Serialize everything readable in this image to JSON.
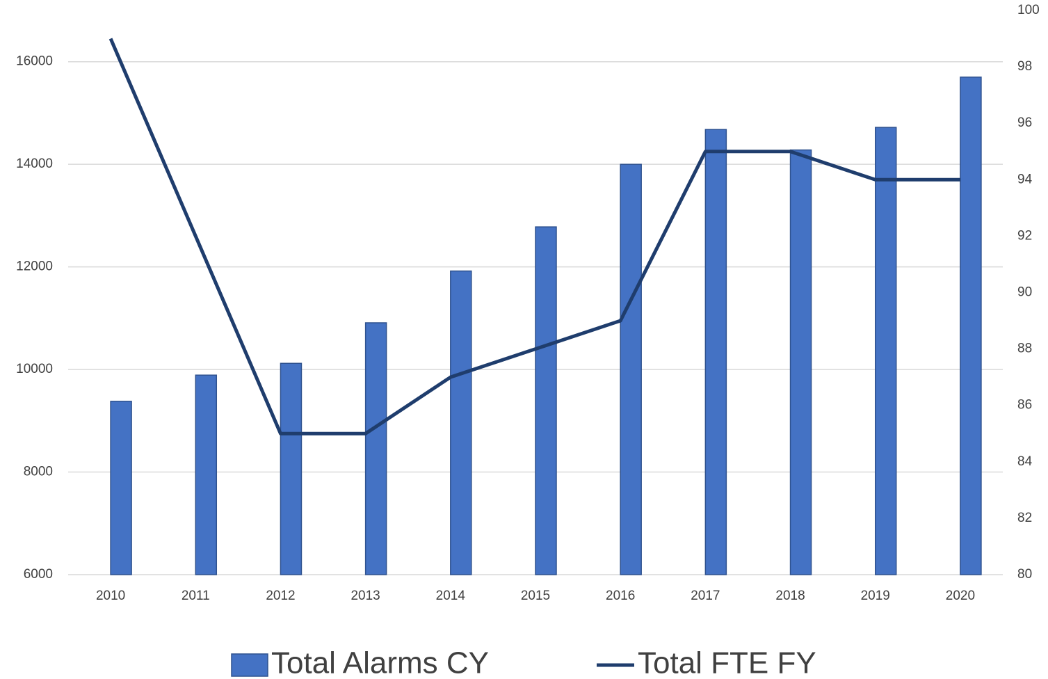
{
  "chart_data": {
    "type": "bar_line",
    "categories": [
      "2010",
      "2011",
      "2012",
      "2013",
      "2014",
      "2015",
      "2016",
      "2017",
      "2018",
      "2019",
      "2020"
    ],
    "series": [
      {
        "name": "Total Alarms CY",
        "type": "bar",
        "color": "#4472c4",
        "axis": "y",
        "values": [
          9380,
          9890,
          10120,
          10910,
          11920,
          12780,
          14000,
          14680,
          14280,
          14720,
          15700
        ]
      },
      {
        "name": "Total FTE FY",
        "type": "line",
        "color": "#1f3d6d",
        "axis": "y2",
        "values": [
          99,
          92,
          85,
          85,
          87,
          88,
          89,
          95,
          95,
          94,
          94
        ]
      }
    ],
    "ylim": [
      6000,
      17000
    ],
    "yticks": [
      6000,
      8000,
      10000,
      12000,
      14000,
      16000
    ],
    "y2lim": [
      80,
      100
    ],
    "y2ticks": [
      80,
      82,
      84,
      86,
      88,
      90,
      92,
      94,
      96,
      98,
      100
    ],
    "grid": true,
    "legend": "bottom"
  }
}
